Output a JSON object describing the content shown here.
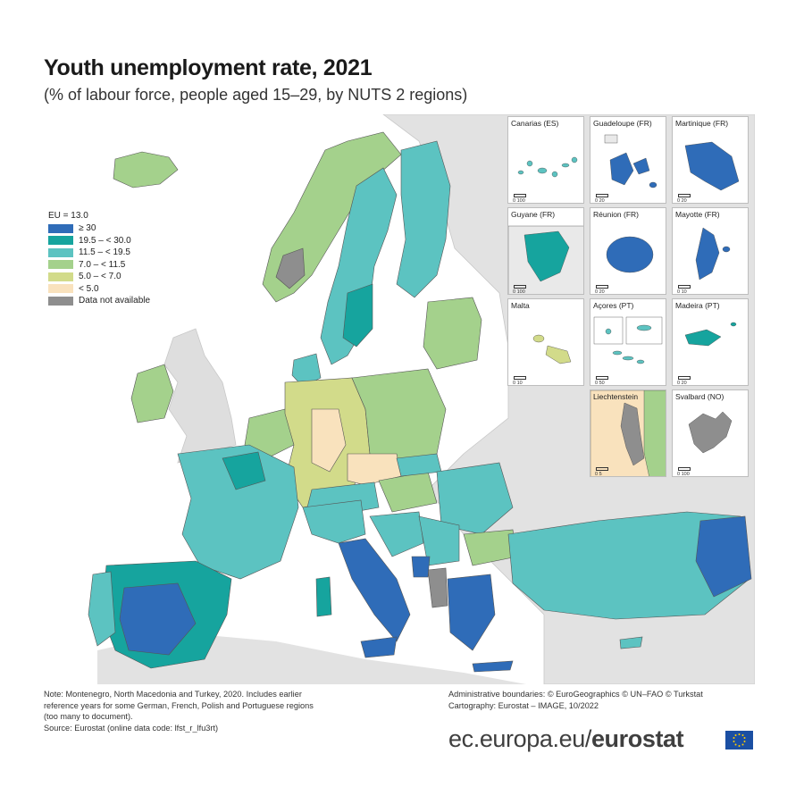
{
  "title": "Youth unemployment rate, 2021",
  "subtitle": "(% of labour force, people aged 15–29, by NUTS 2 regions)",
  "legend": {
    "title": "EU = 13.0",
    "items": [
      {
        "label": "≥ 30",
        "color": "#2f6cb8"
      },
      {
        "label": "19.5 – < 30.0",
        "color": "#16a49e"
      },
      {
        "label": "11.5 – < 19.5",
        "color": "#5cc3c1"
      },
      {
        "label": "7.0 – < 11.5",
        "color": "#a4d18c"
      },
      {
        "label": "5.0 – < 7.0",
        "color": "#d2db8a"
      },
      {
        "label": "< 5.0",
        "color": "#f9e2bd"
      },
      {
        "label": "Data not available",
        "color": "#8e8e8e"
      }
    ]
  },
  "insets": [
    {
      "label": "Canarias (ES)",
      "scale": "0   100"
    },
    {
      "label": "Guadeloupe (FR)",
      "scale": "0   20"
    },
    {
      "label": "Martinique (FR)",
      "scale": "0   20"
    },
    {
      "label": "Guyane (FR)",
      "scale": "0   100"
    },
    {
      "label": "Réunion (FR)",
      "scale": "0   20"
    },
    {
      "label": "Mayotte (FR)",
      "scale": "0   10"
    },
    {
      "label": "Malta",
      "scale": "0   10"
    },
    {
      "label": "Açores (PT)",
      "scale": "0   50"
    },
    {
      "label": "Madeira (PT)",
      "scale": "0   20"
    },
    {
      "label": "Liechtenstein",
      "scale": "0   5"
    },
    {
      "label": "Svalbard (NO)",
      "scale": "0   100"
    }
  ],
  "note": {
    "line1": "Note: Montenegro, North Macedonia and Turkey, 2020. Includes earlier",
    "line2": "reference years for some German, French, Polish and Portuguese regions",
    "line3": "(too many to document).",
    "line4": "Source: Eurostat (online data code: lfst_r_lfu3rt)"
  },
  "credits": {
    "line1": "Administrative boundaries: © EuroGeographics © UN–FAO © Turkstat",
    "line2": "Cartography: Eurostat – IMAGE, 10/2022"
  },
  "brand": {
    "prefix": "ec.europa.eu/",
    "name": "eurostat"
  }
}
